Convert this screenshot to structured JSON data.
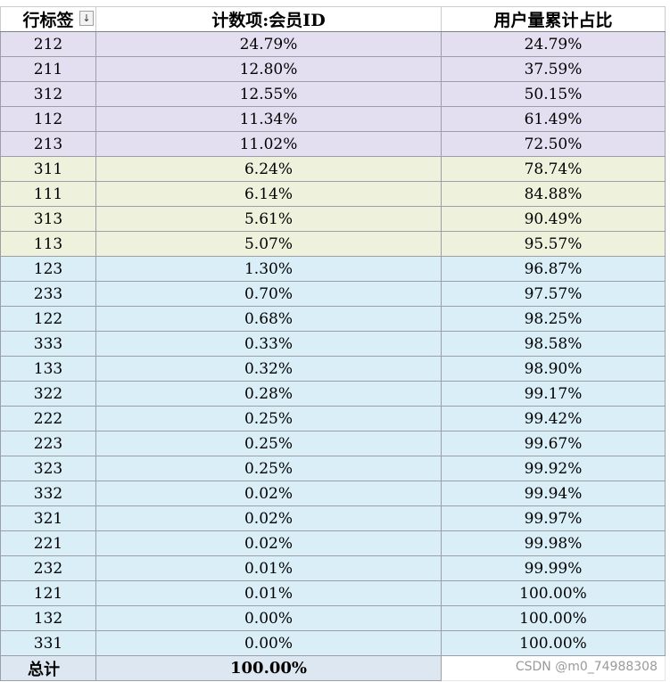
{
  "headers": {
    "row_label": "行标签",
    "filter_glyph": "↓",
    "count": "计数项:会员ID",
    "cumulative": "用户量累计占比"
  },
  "rows": [
    {
      "label": "212",
      "count": "24.79%",
      "cum": "24.79%",
      "group": "purple"
    },
    {
      "label": "211",
      "count": "12.80%",
      "cum": "37.59%",
      "group": "purple"
    },
    {
      "label": "312",
      "count": "12.55%",
      "cum": "50.15%",
      "group": "purple"
    },
    {
      "label": "112",
      "count": "11.34%",
      "cum": "61.49%",
      "group": "purple"
    },
    {
      "label": "213",
      "count": "11.02%",
      "cum": "72.50%",
      "group": "purple"
    },
    {
      "label": "311",
      "count": "6.24%",
      "cum": "78.74%",
      "group": "olive"
    },
    {
      "label": "111",
      "count": "6.14%",
      "cum": "84.88%",
      "group": "olive"
    },
    {
      "label": "313",
      "count": "5.61%",
      "cum": "90.49%",
      "group": "olive"
    },
    {
      "label": "113",
      "count": "5.07%",
      "cum": "95.57%",
      "group": "olive"
    },
    {
      "label": "123",
      "count": "1.30%",
      "cum": "96.87%",
      "group": "blue"
    },
    {
      "label": "233",
      "count": "0.70%",
      "cum": "97.57%",
      "group": "blue"
    },
    {
      "label": "122",
      "count": "0.68%",
      "cum": "98.25%",
      "group": "blue"
    },
    {
      "label": "333",
      "count": "0.33%",
      "cum": "98.58%",
      "group": "blue"
    },
    {
      "label": "133",
      "count": "0.32%",
      "cum": "98.90%",
      "group": "blue"
    },
    {
      "label": "322",
      "count": "0.28%",
      "cum": "99.17%",
      "group": "blue"
    },
    {
      "label": "222",
      "count": "0.25%",
      "cum": "99.42%",
      "group": "blue"
    },
    {
      "label": "223",
      "count": "0.25%",
      "cum": "99.67%",
      "group": "blue"
    },
    {
      "label": "323",
      "count": "0.25%",
      "cum": "99.92%",
      "group": "blue"
    },
    {
      "label": "332",
      "count": "0.02%",
      "cum": "99.94%",
      "group": "blue"
    },
    {
      "label": "321",
      "count": "0.02%",
      "cum": "99.97%",
      "group": "blue"
    },
    {
      "label": "221",
      "count": "0.02%",
      "cum": "99.98%",
      "group": "blue"
    },
    {
      "label": "232",
      "count": "0.01%",
      "cum": "99.99%",
      "group": "blue"
    },
    {
      "label": "121",
      "count": "0.01%",
      "cum": "100.00%",
      "group": "blue"
    },
    {
      "label": "132",
      "count": "0.00%",
      "cum": "100.00%",
      "group": "blue"
    },
    {
      "label": "331",
      "count": "0.00%",
      "cum": "100.00%",
      "group": "blue"
    }
  ],
  "total": {
    "label": "总计",
    "count": "100.00%"
  },
  "watermark": "CSDN @m0_74988308",
  "colors": {
    "purple": "#e4dff0",
    "olive": "#eef2dd",
    "blue": "#d9eef6",
    "total": "#dde7f1"
  }
}
